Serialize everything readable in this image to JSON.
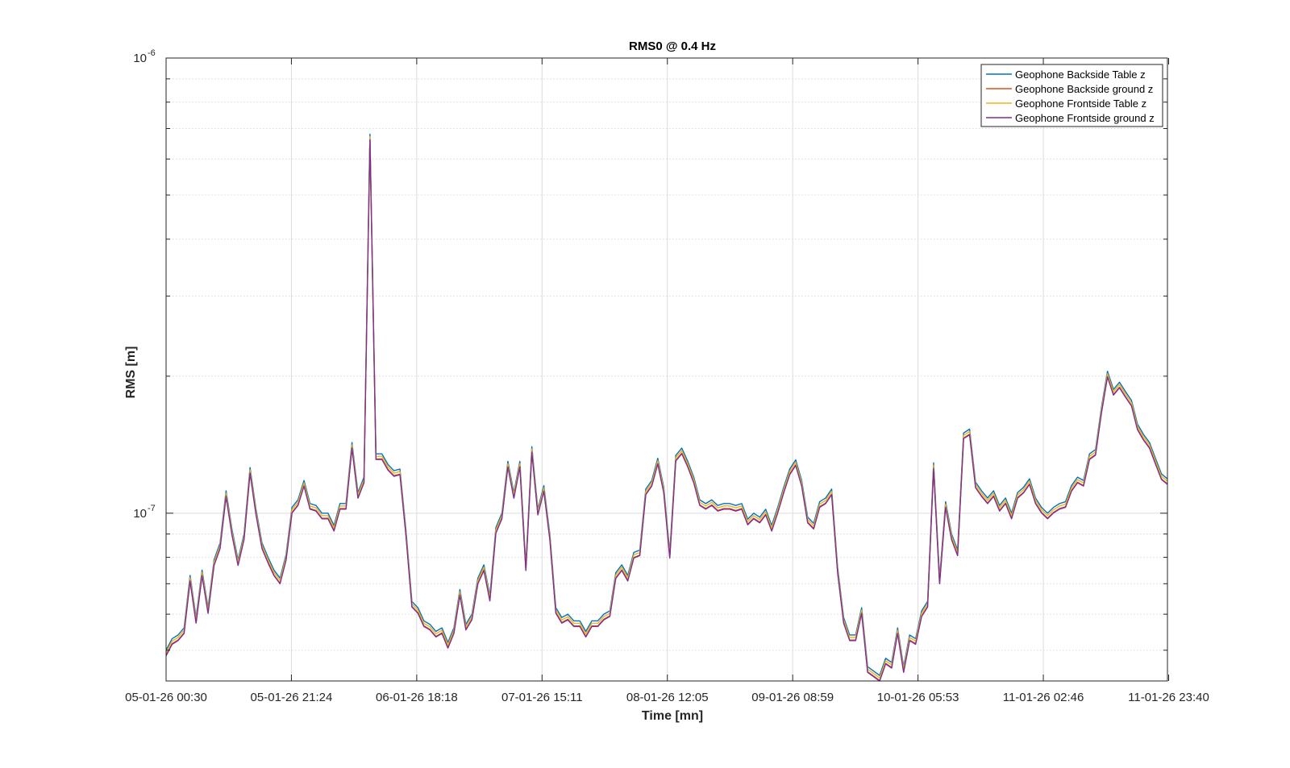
{
  "chart_data": {
    "type": "line",
    "title": "RMS0 @ 0.4 Hz",
    "xlabel": "Time [mn]",
    "ylabel": "RMS [m]",
    "yscale": "log",
    "ylim": [
      4.28e-08,
      1e-06
    ],
    "xlim": [
      0,
      167
    ],
    "grid": true,
    "legend_position": "top-right",
    "x_tick_labels": [
      "05-01-26 00:30",
      "05-01-26 21:24",
      "06-01-26 18:18",
      "07-01-26 15:11",
      "08-01-26 12:05",
      "09-01-26 08:59",
      "10-01-26 05:53",
      "11-01-26 02:46",
      "11-01-26 23:40"
    ],
    "x_tick_positions": [
      0,
      20.9,
      41.8,
      62.7,
      83.6,
      104.5,
      125.4,
      146.3,
      167.2
    ],
    "y_ticks": [
      {
        "value": 1e-07,
        "base": "10",
        "exp": "-7"
      },
      {
        "value": 1e-06,
        "base": "10",
        "exp": "-6"
      }
    ],
    "series": [
      {
        "name": "Geophone Backside Table z",
        "color": "#0072BD",
        "offset": 1.0
      },
      {
        "name": "Geophone Backside ground z",
        "color": "#D95319",
        "offset": 0.975
      },
      {
        "name": "Geophone Frontside Table z",
        "color": "#EDB120",
        "offset": 0.988
      },
      {
        "name": "Geophone Frontside ground z",
        "color": "#7E2F8E",
        "offset": 0.972
      }
    ],
    "x": [
      0,
      1,
      2,
      3,
      4,
      5,
      6,
      7,
      8,
      9,
      10,
      11,
      12,
      13,
      14,
      15,
      16,
      17,
      18,
      19,
      20,
      21,
      22,
      23,
      24,
      25,
      26,
      27,
      28,
      29,
      30,
      31,
      32,
      33,
      34,
      35,
      36,
      37,
      38,
      39,
      40,
      41,
      42,
      43,
      44,
      45,
      46,
      47,
      48,
      49,
      50,
      51,
      52,
      53,
      54,
      55,
      56,
      57,
      58,
      59,
      60,
      61,
      62,
      63,
      64,
      65,
      66,
      67,
      68,
      69,
      70,
      71,
      72,
      73,
      74,
      75,
      76,
      77,
      78,
      79,
      80,
      81,
      82,
      83,
      84,
      85,
      86,
      87,
      88,
      89,
      90,
      91,
      92,
      93,
      94,
      95,
      96,
      97,
      98,
      99,
      100,
      101,
      102,
      103,
      104,
      105,
      106,
      107,
      108,
      109,
      110,
      111,
      112,
      113,
      114,
      115,
      116,
      117,
      118,
      119,
      120,
      121,
      122,
      123,
      124,
      125,
      126,
      127,
      128,
      129,
      130,
      131,
      132,
      133,
      134,
      135,
      136,
      137,
      138,
      139,
      140,
      141,
      142,
      143,
      144,
      145,
      146,
      147,
      148,
      149,
      150,
      151,
      152,
      153,
      154,
      155,
      156,
      157,
      158,
      159,
      160,
      161,
      162,
      163,
      164,
      165,
      166,
      167
    ],
    "y_base": [
      5e-08,
      5.3e-08,
      5.4e-08,
      5.6e-08,
      7.3e-08,
      5.9e-08,
      7.5e-08,
      6.2e-08,
      7.9e-08,
      8.6e-08,
      1.12e-07,
      9.2e-08,
      7.9e-08,
      9e-08,
      1.26e-07,
      1.02e-07,
      8.6e-08,
      8e-08,
      7.5e-08,
      7.2e-08,
      8.1e-08,
      1.03e-07,
      1.07e-07,
      1.18e-07,
      1.05e-07,
      1.04e-07,
      1e-07,
      1e-07,
      9.4e-08,
      1.05e-07,
      1.05e-07,
      1.43e-07,
      1.11e-07,
      1.2e-07,
      6.8e-07,
      1.35e-07,
      1.35e-07,
      1.28e-07,
      1.24e-07,
      1.25e-07,
      9.2e-08,
      6.4e-08,
      6.2e-08,
      5.8e-08,
      5.7e-08,
      5.5e-08,
      5.6e-08,
      5.2e-08,
      5.6e-08,
      6.8e-08,
      5.7e-08,
      6e-08,
      7.2e-08,
      7.7e-08,
      6.6e-08,
      9.3e-08,
      1e-07,
      1.3e-07,
      1.11e-07,
      1.3e-07,
      7.7e-08,
      1.4e-07,
      1.02e-07,
      1.15e-07,
      9e-08,
      6.2e-08,
      5.9e-08,
      6e-08,
      5.8e-08,
      5.8e-08,
      5.5e-08,
      5.8e-08,
      5.8e-08,
      6e-08,
      6.1e-08,
      7.4e-08,
      7.7e-08,
      7.3e-08,
      8.2e-08,
      8.3e-08,
      1.13e-07,
      1.18e-07,
      1.32e-07,
      1.14e-07,
      8.2e-08,
      1.34e-07,
      1.39e-07,
      1.3e-07,
      1.2e-07,
      1.07e-07,
      1.05e-07,
      1.07e-07,
      1.04e-07,
      1.05e-07,
      1.05e-07,
      1.04e-07,
      1.05e-07,
      9.7e-08,
      1e-07,
      9.8e-08,
      1.02e-07,
      9.4e-08,
      1.03e-07,
      1.14e-07,
      1.25e-07,
      1.31e-07,
      1.18e-07,
      9.8e-08,
      9.5e-08,
      1.06e-07,
      1.08e-07,
      1.13e-07,
      7.6e-08,
      5.9e-08,
      5.4e-08,
      5.4e-08,
      6.2e-08,
      4.6e-08,
      4.5e-08,
      4.4e-08,
      4.8e-08,
      4.7e-08,
      5.6e-08,
      4.6e-08,
      5.4e-08,
      5.3e-08,
      6.1e-08,
      6.4e-08,
      1.29e-07,
      7.2e-08,
      1.06e-07,
      9e-08,
      8.3e-08,
      1.5e-07,
      1.53e-07,
      1.17e-07,
      1.12e-07,
      1.08e-07,
      1.12e-07,
      1.04e-07,
      1.08e-07,
      1e-07,
      1.11e-07,
      1.14e-07,
      1.19e-07,
      1.08e-07,
      1.03e-07,
      1e-07,
      1.03e-07,
      1.05e-07,
      1.06e-07,
      1.15e-07,
      1.2e-07,
      1.18e-07,
      1.35e-07,
      1.38e-07,
      1.71e-07,
      2.05e-07,
      1.87e-07,
      1.94e-07,
      1.85e-07,
      1.77e-07,
      1.57e-07,
      1.49e-07,
      1.43e-07,
      1.32e-07,
      1.22e-07,
      1.19e-07
    ]
  }
}
